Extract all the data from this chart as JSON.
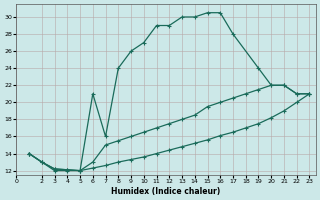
{
  "xlabel": "Humidex (Indice chaleur)",
  "xlim": [
    0,
    23.5
  ],
  "ylim": [
    11.5,
    31.5
  ],
  "xticks": [
    0,
    2,
    3,
    4,
    5,
    6,
    7,
    8,
    9,
    10,
    11,
    12,
    13,
    14,
    15,
    16,
    17,
    18,
    19,
    20,
    21,
    22,
    23
  ],
  "yticks": [
    12,
    14,
    16,
    18,
    20,
    22,
    24,
    26,
    28,
    30
  ],
  "background_color": "#cce8e8",
  "line_color": "#1a6b5a",
  "curve1_x": [
    1,
    2,
    3,
    4,
    5,
    6,
    7,
    8,
    9,
    10,
    11,
    12,
    13,
    14,
    15,
    16,
    17,
    19,
    20,
    21,
    22,
    23
  ],
  "curve1_y": [
    14,
    13,
    12,
    12,
    12,
    21,
    16,
    24,
    26,
    27,
    29,
    29,
    30,
    30,
    30.5,
    30.5,
    28,
    24,
    22,
    22,
    21,
    21
  ],
  "curve2_x": [
    1,
    2,
    3,
    4,
    5,
    6,
    7,
    8,
    9,
    10,
    11,
    12,
    13,
    14,
    15,
    16,
    17,
    18,
    19,
    20,
    21,
    22,
    23
  ],
  "curve2_y": [
    14,
    13,
    12.2,
    12.1,
    12,
    13,
    15,
    15.5,
    16,
    16.5,
    17,
    17.5,
    18,
    18.5,
    19.5,
    20,
    20.5,
    21,
    21.5,
    22,
    22,
    21,
    21
  ],
  "curve3_x": [
    1,
    2,
    3,
    4,
    5,
    6,
    7,
    8,
    9,
    10,
    11,
    12,
    13,
    14,
    15,
    16,
    17,
    18,
    19,
    20,
    21,
    22,
    23
  ],
  "curve3_y": [
    14,
    13,
    12.2,
    12.1,
    12,
    12.3,
    12.6,
    13,
    13.3,
    13.6,
    14,
    14.4,
    14.8,
    15.2,
    15.6,
    16.1,
    16.5,
    17,
    17.5,
    18.2,
    19,
    20,
    21
  ]
}
